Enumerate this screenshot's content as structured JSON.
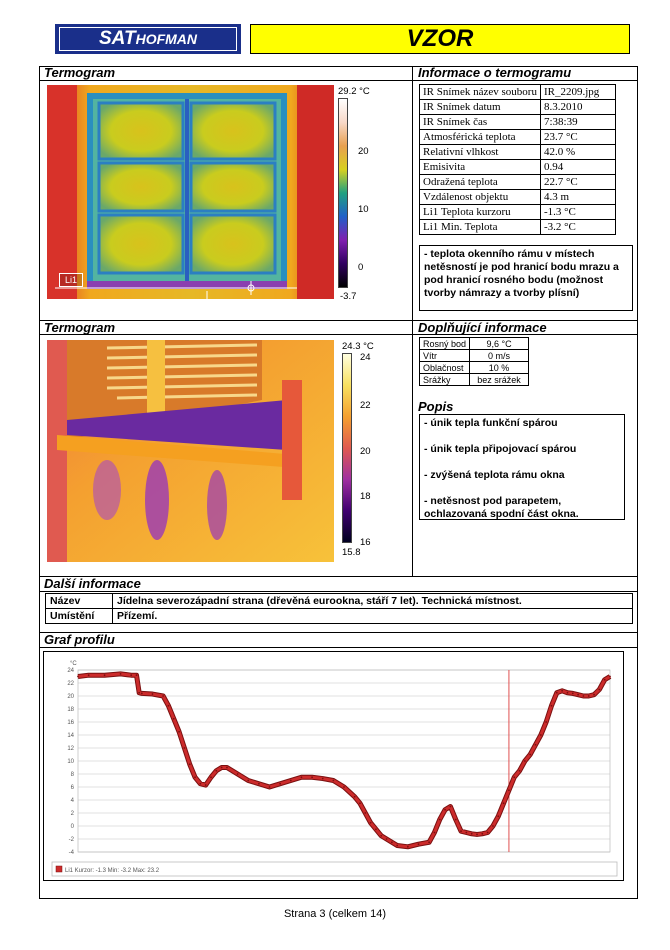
{
  "header": {
    "logo_main": "SAT",
    "logo_sub": "HOFMAN",
    "title": "VZOR"
  },
  "termogram1": {
    "heading": "Termogram",
    "scale_max": "29.2 °C",
    "scale_ticks": [
      "20",
      "10",
      "0"
    ],
    "scale_min": "-3.7",
    "line_label": "Li1"
  },
  "info": {
    "heading": "Informace o termogramu",
    "rows": [
      {
        "label": "IR Snímek název souboru",
        "value": "IR_2209.jpg"
      },
      {
        "label": "IR Snímek datum",
        "value": "8.3.2010"
      },
      {
        "label": "IR Snímek čas",
        "value": "7:38:39"
      },
      {
        "label": "Atmosférická teplota",
        "value": "23.7 °C"
      },
      {
        "label": "Relativní vlhkost",
        "value": "42.0 %"
      },
      {
        "label": "Emisivita",
        "value": "0.94"
      },
      {
        "label": "Odražená teplota",
        "value": "22.7 °C"
      },
      {
        "label": "Vzdálenost objektu",
        "value": "4.3 m"
      },
      {
        "label": "Li1 Teplota kurzoru",
        "value": "-1.3 °C"
      },
      {
        "label": "Li1 Min. Teplota",
        "value": "-3.2 °C"
      }
    ],
    "note": "- teplota okenního rámu v místech netěsností je pod hranicí bodu mrazu a pod hranicí rosného bodu (možnost tvorby námrazy a tvorby plísní)"
  },
  "termogram2": {
    "heading": "Termogram",
    "scale_max": "24.3 °C",
    "scale_ticks": [
      "24",
      "22",
      "20",
      "18",
      "16"
    ],
    "scale_min": "15.8"
  },
  "doplnujici": {
    "heading": "Doplňující informace",
    "rows": [
      {
        "label": "Rosný bod",
        "value": "9,6 °C"
      },
      {
        "label": "Vítr",
        "value": "0 m/s"
      },
      {
        "label": "Oblačnost",
        "value": "10 %"
      },
      {
        "label": "Srážky",
        "value": "bez srážek"
      }
    ]
  },
  "popis": {
    "heading": "Popis",
    "items": [
      "- únik tepla funkční spárou",
      "- únik tepla připojovací spárou",
      "- zvýšená teplota rámu okna",
      "- netěsnost pod parapetem, ochlazovaná spodní část okna."
    ]
  },
  "dalsi": {
    "heading": "Další informace",
    "rows": [
      {
        "label": "Název",
        "value": "Jídelna severozápadní strana (dřevěná eurookna, stáří 7 let). Technická místnost."
      },
      {
        "label": "Umístění",
        "value": "Přízemí."
      }
    ]
  },
  "graf": {
    "heading": "Graf profilu",
    "unit": "°C",
    "legend": "Li1 Kurzor: -1.3 Min: -3.2 Max: 23.2"
  },
  "chart_data": {
    "type": "line",
    "title": "",
    "xlabel": "",
    "ylabel": "°C",
    "ylim": [
      -4,
      24
    ],
    "yticks": [
      24,
      22,
      20,
      18,
      16,
      14,
      12,
      10,
      8,
      6,
      4,
      2,
      0,
      -2,
      -4
    ],
    "grid": true,
    "legend_position": "bottom-left",
    "cursor_x_fraction": 0.81,
    "series": [
      {
        "name": "Li1",
        "color": "#cc2b2b",
        "x": [
          0,
          0.02,
          0.05,
          0.08,
          0.1,
          0.11,
          0.115,
          0.12,
          0.14,
          0.16,
          0.17,
          0.18,
          0.19,
          0.2,
          0.21,
          0.22,
          0.23,
          0.24,
          0.25,
          0.26,
          0.27,
          0.28,
          0.3,
          0.32,
          0.34,
          0.36,
          0.38,
          0.4,
          0.42,
          0.44,
          0.46,
          0.48,
          0.5,
          0.52,
          0.53,
          0.54,
          0.55,
          0.56,
          0.57,
          0.58,
          0.59,
          0.6,
          0.62,
          0.64,
          0.66,
          0.67,
          0.68,
          0.69,
          0.7,
          0.71,
          0.72,
          0.73,
          0.74,
          0.75,
          0.76,
          0.77,
          0.78,
          0.79,
          0.8,
          0.81,
          0.82,
          0.83,
          0.84,
          0.85,
          0.86,
          0.87,
          0.88,
          0.89,
          0.9,
          0.91,
          0.92,
          0.93,
          0.94,
          0.95,
          0.96,
          0.97,
          0.98,
          0.99,
          1.0
        ],
        "values": [
          23,
          23.2,
          23.2,
          23.4,
          23.2,
          23.2,
          20.5,
          20.4,
          20.3,
          20.0,
          18.5,
          16.5,
          14.5,
          12.0,
          9.5,
          7.5,
          6.5,
          6.3,
          7.5,
          8.5,
          9.0,
          9.0,
          8.0,
          7.0,
          6.5,
          6.0,
          6.5,
          7.0,
          7.5,
          7.5,
          7.3,
          7.0,
          6.0,
          4.5,
          3.5,
          2.0,
          0.5,
          -0.5,
          -1.5,
          -2.0,
          -2.5,
          -3.0,
          -3.2,
          -2.8,
          -2.5,
          -1.0,
          1.0,
          2.5,
          3.0,
          1.0,
          -0.8,
          -1.0,
          -1.2,
          -1.3,
          -1.2,
          -1.0,
          0.0,
          1.5,
          3.5,
          5.5,
          7.5,
          8.5,
          10.0,
          11.0,
          12.5,
          14.0,
          16.0,
          18.5,
          20.5,
          20.8,
          20.5,
          20.4,
          20.2,
          20.0,
          20.0,
          20.2,
          21.0,
          22.5,
          23.0
        ]
      }
    ]
  },
  "footer": {
    "page_text": "Strana 3 (celkem 14)"
  }
}
